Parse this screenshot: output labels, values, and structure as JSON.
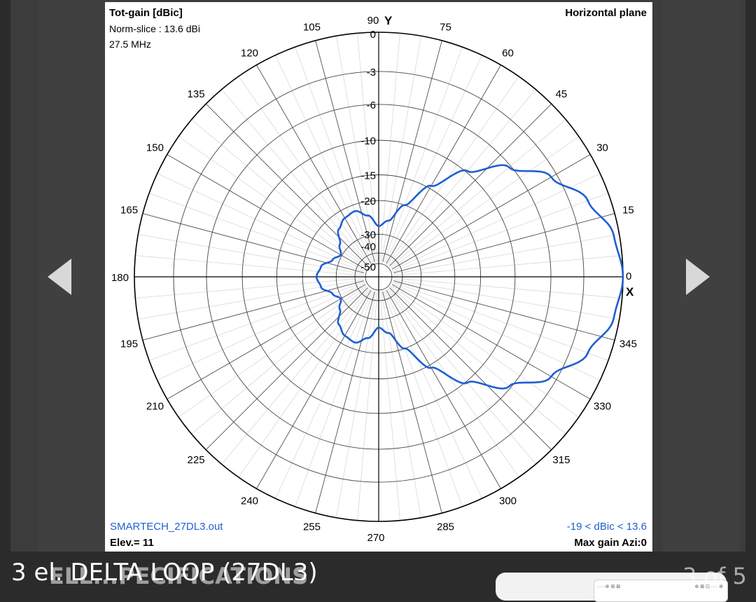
{
  "viewer": {
    "caption": "3 el. DELTA LOOP (27DL3)",
    "ghost_caption": "ELL...PECIFICATIONS",
    "counter": "3 of 5",
    "prev_icon": "triangle-left-icon",
    "next_icon": "triangle-right-icon",
    "thumb_left": "·····⊕ ⊞ ⊠",
    "thumb_right": "⊕ ⊠ ⊡ ···· ⊕"
  },
  "plot": {
    "title_left": "Tot-gain [dBic]",
    "norm_slice": "Norm-slice : 13.6 dBi",
    "freq": "27.5 MHz",
    "title_right": "Horizontal plane",
    "file": "SMARTECH_27DL3.out",
    "elev": "Elev.= 11",
    "range": "-19 < dBic < 13.6",
    "max_gain": "Max gain Azi:0",
    "x_axis_label": "X",
    "y_axis_label": "Y",
    "pattern_color": "#1f5fd1"
  },
  "chart_data": {
    "type": "polar",
    "title": "Tot-gain [dBic]",
    "angle_ticks": [
      0,
      15,
      30,
      45,
      60,
      75,
      90,
      105,
      120,
      135,
      150,
      165,
      180,
      195,
      210,
      225,
      240,
      255,
      270,
      285,
      300,
      315,
      330,
      345
    ],
    "radial_ticks": [
      "0",
      "-3",
      "-6",
      "-10",
      "-15",
      "-20",
      "-30",
      "-40",
      "-50"
    ],
    "radial_values": [
      0,
      -3,
      -6,
      -10,
      -15,
      -20,
      -30,
      -40,
      -50
    ],
    "series": [
      {
        "azimuth_deg": [
          0,
          10,
          20,
          30,
          40,
          50,
          60,
          70,
          80,
          90,
          100,
          110,
          120,
          130,
          140,
          150,
          160,
          170,
          180,
          190,
          200,
          210,
          220,
          230,
          240,
          250,
          260,
          270,
          280,
          290,
          300,
          310,
          320,
          330,
          340,
          350
        ],
        "gain_dB": [
          0,
          -0.4,
          -1.6,
          -3.5,
          -6.2,
          -9.8,
          -14.5,
          -20,
          -25,
          -27,
          -23.5,
          -21.5,
          -22,
          -23.5,
          -27,
          -29.5,
          -27.5,
          -24.5,
          -23.5,
          -24.5,
          -27.5,
          -29.5,
          -27,
          -23.5,
          -22,
          -21.5,
          -23.5,
          -27,
          -25,
          -20,
          -14.5,
          -9.8,
          -6.2,
          -3.5,
          -1.6,
          -0.4
        ]
      }
    ]
  }
}
